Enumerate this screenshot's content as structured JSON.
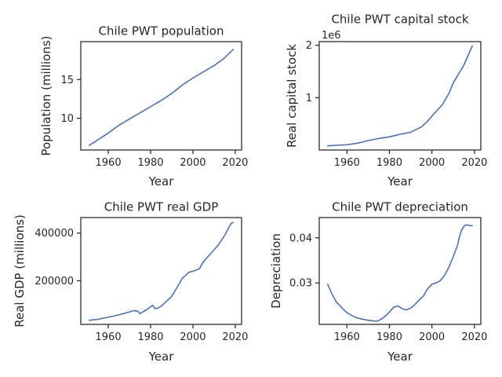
{
  "chart_data": [
    {
      "type": "line",
      "title": "Chile PWT population",
      "xlabel": "Year",
      "ylabel": "Population (millions)",
      "xlim": [
        1947,
        2023
      ],
      "ylim": [
        5.9,
        19.9
      ],
      "xticks": [
        1960,
        1980,
        2000,
        2020
      ],
      "yticks": [
        10,
        15
      ],
      "ytick_labels": [
        "10",
        "15"
      ],
      "offset_text": "",
      "grid": false,
      "color": "#4c72b0",
      "series": [
        {
          "x": [
            1951,
            1955,
            1960,
            1965,
            1970,
            1975,
            1980,
            1985,
            1990,
            1995,
            2000,
            2005,
            2010,
            2015,
            2019
          ],
          "y": [
            6.5,
            7.2,
            8.1,
            9.1,
            9.9,
            10.7,
            11.5,
            12.3,
            13.2,
            14.3,
            15.2,
            16.0,
            16.8,
            17.8,
            18.9
          ]
        }
      ]
    },
    {
      "type": "line",
      "title": "Chile PWT capital stock",
      "xlabel": "Year",
      "ylabel": "Real capital stock",
      "xlim": [
        1947,
        2023
      ],
      "ylim": [
        0.0,
        2.07
      ],
      "xticks": [
        1960,
        1980,
        2000,
        2020
      ],
      "yticks": [
        1,
        2
      ],
      "ytick_labels": [
        "1",
        "2"
      ],
      "offset_text": "1e6",
      "grid": false,
      "color": "#4c72b0",
      "series": [
        {
          "x": [
            1951,
            1955,
            1960,
            1965,
            1970,
            1975,
            1980,
            1985,
            1990,
            1995,
            1998,
            2000,
            2005,
            2008,
            2010,
            2015,
            2019
          ],
          "y": [
            0.08,
            0.09,
            0.1,
            0.13,
            0.18,
            0.22,
            0.25,
            0.3,
            0.34,
            0.44,
            0.55,
            0.65,
            0.87,
            1.08,
            1.28,
            1.62,
            1.99
          ]
        }
      ]
    },
    {
      "type": "line",
      "title": "Chile PWT real GDP",
      "xlabel": "Year",
      "ylabel": "Real GDP (millions)",
      "xlim": [
        1947,
        2023
      ],
      "ylim": [
        17000,
        465000
      ],
      "xticks": [
        1960,
        1980,
        2000,
        2020
      ],
      "yticks": [
        200000,
        400000
      ],
      "ytick_labels": [
        "200000",
        "400000"
      ],
      "offset_text": "",
      "grid": false,
      "color": "#4c72b0",
      "series": [
        {
          "x": [
            1951,
            1955,
            1960,
            1965,
            1970,
            1972,
            1974,
            1975,
            1978,
            1981,
            1982,
            1983,
            1985,
            1988,
            1990,
            1993,
            1995,
            1998,
            2000,
            2003,
            2005,
            2008,
            2010,
            2012,
            2015,
            2018,
            2019
          ],
          "y": [
            34000,
            38000,
            47000,
            57000,
            69000,
            75000,
            72000,
            62000,
            78000,
            97000,
            84000,
            84000,
            93000,
            118000,
            135000,
            180000,
            210000,
            235000,
            240000,
            250000,
            280000,
            310000,
            330000,
            350000,
            390000,
            440000,
            445000
          ]
        }
      ]
    },
    {
      "type": "line",
      "title": "Chile PWT depreciation",
      "xlabel": "Year",
      "ylabel": "Depreciation",
      "xlim": [
        1947,
        2023
      ],
      "ylim": [
        0.0208,
        0.0445
      ],
      "xticks": [
        1960,
        1980,
        2000,
        2020
      ],
      "yticks": [
        0.03,
        0.04
      ],
      "ytick_labels": [
        "0.03",
        "0.04"
      ],
      "offset_text": "",
      "grid": false,
      "color": "#4c72b0",
      "series": [
        {
          "x": [
            1951,
            1953,
            1955,
            1958,
            1960,
            1963,
            1965,
            1968,
            1970,
            1972,
            1974,
            1976,
            1978,
            1980,
            1982,
            1984,
            1986,
            1988,
            1990,
            1992,
            1994,
            1996,
            1998,
            2000,
            2002,
            2004,
            2006,
            2008,
            2010,
            2012,
            2013,
            2014,
            2015,
            2016,
            2017,
            2018,
            2019
          ],
          "y": [
            0.0297,
            0.0275,
            0.0258,
            0.0243,
            0.0234,
            0.0226,
            0.0222,
            0.0219,
            0.0217,
            0.0216,
            0.0215,
            0.0219,
            0.0226,
            0.0235,
            0.0246,
            0.0249,
            0.0243,
            0.024,
            0.0244,
            0.0252,
            0.0262,
            0.0271,
            0.0287,
            0.0297,
            0.03,
            0.0305,
            0.0317,
            0.0335,
            0.0358,
            0.0383,
            0.0403,
            0.0418,
            0.0425,
            0.0429,
            0.0428,
            0.0427,
            0.0427
          ]
        }
      ]
    }
  ]
}
